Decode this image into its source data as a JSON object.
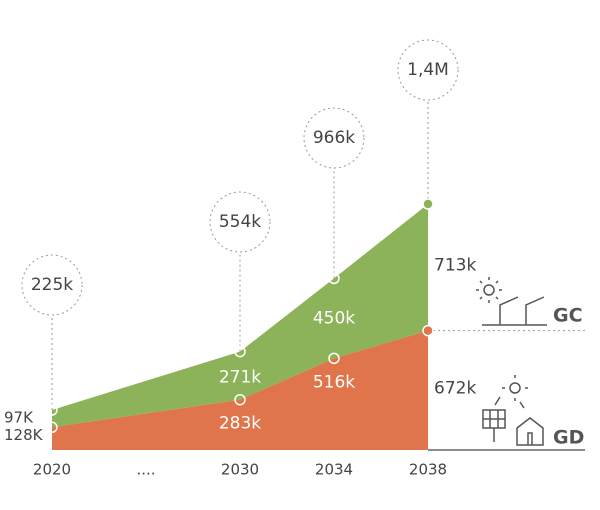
{
  "chart_data": {
    "type": "stacked_area",
    "categories": [
      "2020",
      "2030",
      "2034",
      "2038"
    ],
    "axis_break_label": "....",
    "series": [
      {
        "name": "GD",
        "color": "#e0744a",
        "values": [
          128,
          283,
          516,
          672
        ],
        "value_labels": [
          "128K",
          "283k",
          "516k",
          "672k"
        ]
      },
      {
        "name": "GC",
        "color": "#8db35a",
        "values": [
          97,
          271,
          450,
          713
        ],
        "value_labels": [
          "97K",
          "271k",
          "450k",
          "713k"
        ]
      }
    ],
    "totals": {
      "values": [
        225,
        554,
        966,
        1400
      ],
      "value_labels": [
        "225k",
        "554k",
        "966k",
        "1,4M"
      ]
    }
  }
}
